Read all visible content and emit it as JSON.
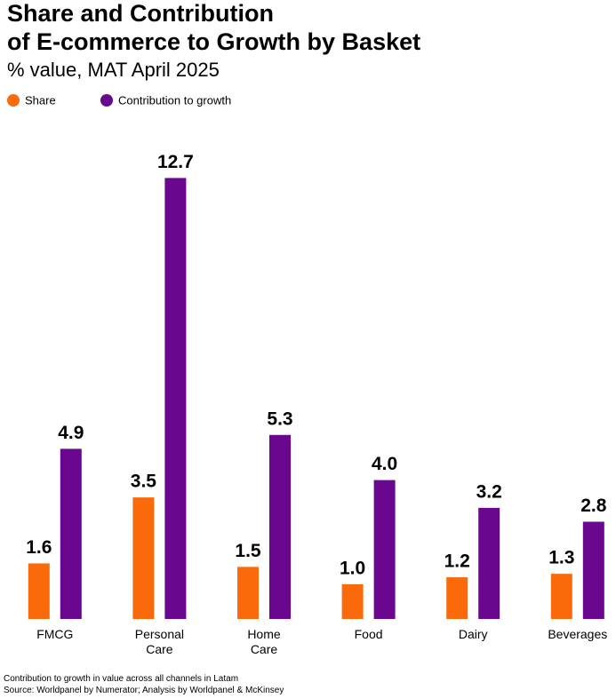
{
  "chart_data": {
    "type": "bar",
    "title": [
      "Share and Contribution",
      "of E-commerce to Growth by Basket"
    ],
    "subtitle": "% value, MAT April 2025",
    "categories": [
      "FMCG",
      "Personal Care",
      "Home Care",
      "Food",
      "Dairy",
      "Beverages"
    ],
    "series": [
      {
        "name": "Share",
        "color": "#fa6a0a",
        "values": [
          1.6,
          3.5,
          1.5,
          1.0,
          1.2,
          1.3
        ],
        "value_labels": [
          "1.6",
          "3.5",
          "1.5",
          "1.0",
          "1.2",
          "1.3"
        ]
      },
      {
        "name": "Contribution to growth",
        "color": "#69088f",
        "values": [
          4.9,
          12.7,
          5.3,
          4.0,
          3.2,
          2.8
        ],
        "value_labels": [
          "4.9",
          "12.7",
          "5.3",
          "4.0",
          "3.2",
          "2.8"
        ]
      }
    ],
    "notes": [
      "Contribution to growth in value across all channels in Latam",
      "Source: Worldpanel by Numerator; Analysis by Worldpanel & McKinsey"
    ]
  }
}
